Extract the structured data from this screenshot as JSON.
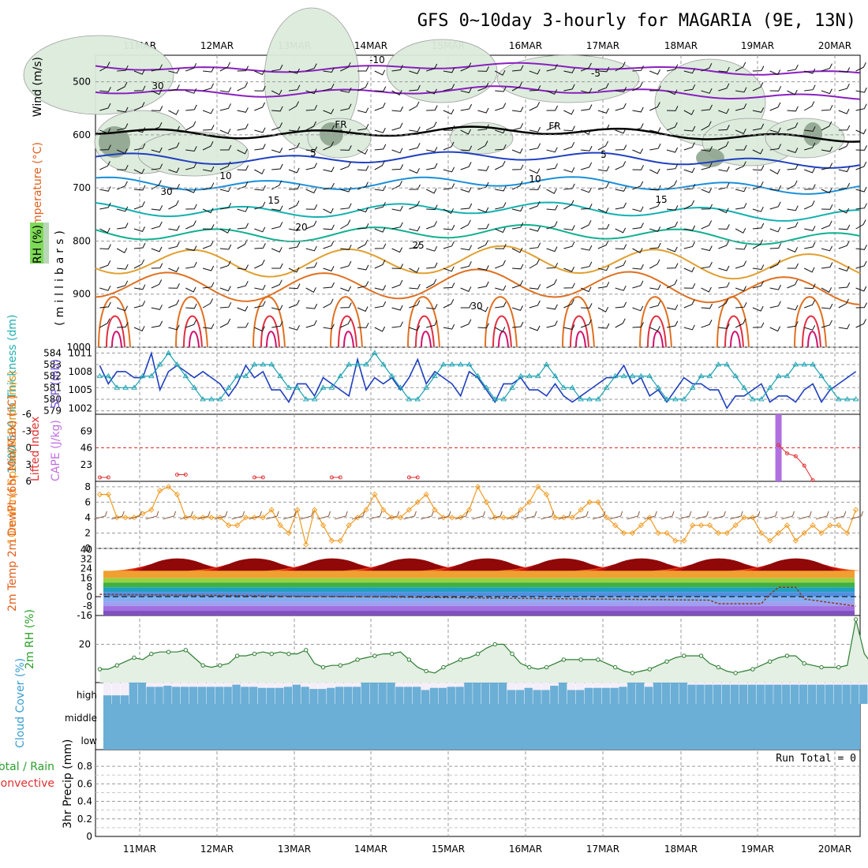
{
  "title": "GFS 0~10day 3-hourly for MAGARIA (9E, 13N)",
  "date_labels": [
    "11MAR",
    "12MAR",
    "13MAR",
    "14MAR",
    "15MAR",
    "16MAR",
    "17MAR",
    "18MAR",
    "19MAR",
    "20MAR"
  ],
  "colors": {
    "rh": "#2e7d32",
    "temp_orange": "#e07020",
    "teal": "#1aa0b0",
    "slp_blue": "#1f3fbf",
    "cape": "#b070e0",
    "lifted_red": "#e03030",
    "wind_orange": "#f09a20",
    "cloud": "#6baed6",
    "precip_green": "#2ca02c"
  },
  "chart_data": [
    {
      "type": "contour",
      "name": "upper-air",
      "ylabel": "(millibars)",
      "side_labels": [
        "Wind (m/s)",
        "Temperature (°C)",
        "RH (%)"
      ],
      "ylim": [
        1000,
        450
      ],
      "yticks": [
        500,
        600,
        700,
        800,
        900,
        1000
      ],
      "contour_labels": [
        "-10",
        "-5",
        "FR",
        "FR",
        "5",
        "5",
        "10",
        "10",
        "15",
        "15",
        "20",
        "25",
        "30",
        "30",
        "30"
      ],
      "isotherms": [
        {
          "label": "-10",
          "p": 470,
          "color": "#8a1fbf"
        },
        {
          "label": "-5",
          "p": 515,
          "color": "#8a1fbf"
        },
        {
          "label": "FR",
          "p": 592,
          "color": "#000000"
        },
        {
          "label": "5",
          "p": 640,
          "color": "#2040c0"
        },
        {
          "label": "10",
          "p": 688,
          "color": "#1a90d8"
        },
        {
          "label": "15",
          "p": 738,
          "color": "#14b0b0"
        },
        {
          "label": "20",
          "p": 782,
          "color": "#10b090"
        },
        {
          "label": "25",
          "p": 835,
          "color": "#e0a030"
        },
        {
          "label": "30",
          "p": 880,
          "color": "#e07020"
        }
      ]
    },
    {
      "type": "line",
      "name": "thickness-slp",
      "ylabel_left": "1000-500mb Thickness (dm)",
      "ylabel_right": "SLP (mb)",
      "yticks_left": [
        "584",
        "583",
        "582",
        "581",
        "580",
        "579"
      ],
      "yticks_right": [
        "1011",
        "1008",
        "1005",
        "1002"
      ],
      "thickness": [
        582,
        582,
        581,
        581,
        581,
        582,
        582,
        583,
        584,
        583,
        582,
        581,
        580,
        580,
        580,
        581,
        582,
        582,
        583,
        583,
        583,
        582,
        581,
        581,
        580,
        580,
        581,
        581,
        582,
        583,
        583,
        583,
        584,
        583,
        582,
        581,
        580,
        580,
        581,
        582,
        583,
        583,
        583,
        583,
        582,
        581,
        580,
        580,
        581,
        582,
        582,
        582,
        583,
        582,
        581,
        581,
        580,
        580,
        580,
        581,
        582,
        582,
        582,
        582,
        582,
        581,
        580,
        580,
        580,
        581,
        582,
        582,
        583,
        583,
        582,
        581,
        580,
        580,
        581,
        582,
        582,
        583,
        583,
        583,
        582,
        581,
        580,
        580,
        580
      ],
      "slp": [
        1009,
        1006,
        1008,
        1008,
        1007,
        1007,
        1011,
        1005,
        1008,
        1009,
        1008,
        1007,
        1008,
        1007,
        1006,
        1004,
        1006,
        1009,
        1007,
        1008,
        1005,
        1005,
        1003,
        1006,
        1006,
        1004,
        1007,
        1006,
        1005,
        1004,
        1010,
        1005,
        1007,
        1006,
        1007,
        1005,
        1007,
        1010,
        1006,
        1008,
        1007,
        1006,
        1004,
        1008,
        1007,
        1005,
        1003,
        1006,
        1006,
        1007,
        1005,
        1005,
        1004,
        1006,
        1004,
        1003,
        1004,
        1005,
        1006,
        1007,
        1007,
        1009,
        1006,
        1007,
        1004,
        1005,
        1003,
        1005,
        1007,
        1006,
        1006,
        1005,
        1005,
        1002,
        1004,
        1004,
        1005,
        1006,
        1003,
        1004,
        1004,
        1003,
        1005,
        1006,
        1003,
        1005,
        1006,
        1007,
        1008
      ]
    },
    {
      "type": "bar",
      "name": "cape-lifted-index",
      "ylabel_left": "Lifted Index",
      "ylabel_right": "CAPE (J/kg)",
      "yticks_left": [
        "-6",
        "-3",
        "0",
        "3",
        "6"
      ],
      "yticks_right": [
        "69",
        "46",
        "23"
      ],
      "cape_index": 79,
      "cape_value": 92,
      "lifted_points": [
        [
          0,
          5.3
        ],
        [
          1,
          5.3
        ],
        [
          9,
          4.8
        ],
        [
          10,
          4.8
        ],
        [
          18,
          5.3
        ],
        [
          19,
          5.3
        ],
        [
          27,
          5.3
        ],
        [
          28,
          5.3
        ],
        [
          36,
          5.3
        ],
        [
          37,
          5.3
        ],
        [
          79,
          -0.5
        ],
        [
          80,
          1.0
        ],
        [
          81,
          1.5
        ],
        [
          82,
          3.2
        ],
        [
          83,
          5.8
        ]
      ]
    },
    {
      "type": "line",
      "name": "10m-wind",
      "ylabel": "10m Wind Speed & Barbs (m/s)",
      "ylim": [
        0,
        8
      ],
      "yticks": [
        "8",
        "6",
        "4",
        "2",
        "0"
      ],
      "speed": [
        7,
        7,
        4,
        4,
        4,
        4.5,
        5,
        7.5,
        8,
        7,
        4,
        4,
        4,
        4,
        4,
        3,
        3,
        4,
        4,
        4,
        5,
        3,
        2,
        5,
        0.5,
        5,
        3,
        1,
        1,
        3,
        4,
        5,
        7,
        5,
        4,
        4,
        5,
        6,
        7,
        5,
        4,
        4,
        4,
        5,
        8,
        6,
        4,
        4,
        4,
        5,
        6,
        8,
        7,
        4,
        4,
        4,
        5,
        6,
        6,
        4,
        3,
        2,
        2,
        3,
        4,
        2,
        2,
        1,
        1,
        3,
        3,
        3,
        2,
        2,
        3,
        4,
        4,
        2,
        1,
        2,
        3,
        1,
        2,
        3,
        2,
        3,
        3,
        2,
        5
      ],
      "mean": 4
    },
    {
      "type": "area",
      "name": "2m-temp-dewpoint",
      "ylabel": "2m Temp 2m DewPt (6hr Min/Max) (°C)",
      "yticks": [
        "40",
        "32",
        "24",
        "16",
        "8",
        "0",
        "-8",
        "-16"
      ],
      "ylim": [
        -16,
        40
      ]
    },
    {
      "type": "area",
      "name": "2m-rh",
      "ylabel": "2m RH (%)",
      "yticks": [
        "20"
      ],
      "ylim": [
        0,
        32
      ],
      "values": [
        7,
        7,
        9,
        11,
        13,
        12,
        15,
        16,
        16,
        16,
        17,
        13,
        9,
        8,
        9,
        10,
        14,
        14,
        15,
        16,
        15,
        16,
        15,
        15,
        17,
        10,
        8,
        9,
        9,
        10,
        12,
        13,
        14,
        15,
        15,
        16,
        12,
        8,
        6,
        5,
        8,
        10,
        12,
        13,
        15,
        18,
        20,
        20,
        15,
        10,
        8,
        7,
        8,
        10,
        12,
        12,
        12,
        12,
        12,
        10,
        8,
        6,
        5,
        6,
        7,
        9,
        11,
        13,
        14,
        14,
        14,
        10,
        8,
        6,
        5,
        6,
        7,
        9,
        11,
        13,
        14,
        14,
        10,
        9,
        8,
        8,
        8,
        9,
        33,
        15,
        9
      ]
    },
    {
      "type": "bar",
      "name": "cloud-cover",
      "ylabel": "Cloud Cover (%)",
      "level_labels": [
        "high",
        "middle",
        "low"
      ],
      "high": [
        40,
        40,
        40,
        100,
        100,
        80,
        80,
        85,
        80,
        80,
        80,
        80,
        80,
        80,
        80,
        90,
        80,
        80,
        75,
        75,
        75,
        80,
        90,
        80,
        70,
        70,
        75,
        80,
        80,
        80,
        100,
        100,
        100,
        100,
        80,
        80,
        80,
        65,
        75,
        75,
        80,
        80,
        100,
        100,
        100,
        100,
        100,
        65,
        65,
        75,
        65,
        65,
        85,
        100,
        65,
        65,
        75,
        75,
        75,
        75,
        80,
        100,
        100,
        80,
        100,
        100,
        100,
        100,
        90,
        90,
        90,
        90,
        90,
        90,
        90,
        90,
        90,
        90,
        90,
        90,
        90,
        90,
        90,
        90,
        90,
        90,
        90,
        90,
        90,
        90,
        90
      ]
    },
    {
      "type": "bar",
      "name": "3hr-precip",
      "ylabel": "3hr Precip (mm)",
      "side_labels": [
        "Total / Rain",
        "Convective"
      ],
      "yticks": [
        "0.8",
        "0.6",
        "0.4",
        "0.2",
        "0"
      ],
      "ylim": [
        0,
        1
      ],
      "run_total": "Run Total = 0"
    }
  ]
}
